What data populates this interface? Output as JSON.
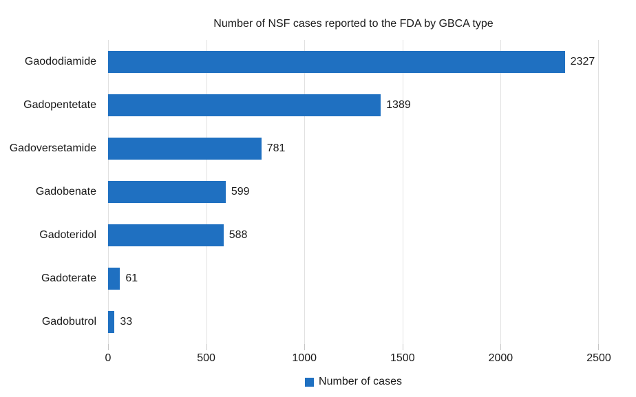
{
  "chart_data": {
    "type": "bar",
    "orientation": "horizontal",
    "title": "Number of NSF cases reported to the FDA by GBCA type",
    "categories": [
      "Gaododiamide",
      "Gadopentetate",
      "Gadoversetamide",
      "Gadobenate",
      "Gadoteridol",
      "Gadoterate",
      "Gadobutrol"
    ],
    "values": [
      2327,
      1389,
      781,
      599,
      588,
      61,
      33
    ],
    "series_name": "Number of cases",
    "xlabel": "",
    "ylabel": "",
    "xlim": [
      0,
      2500
    ],
    "x_ticks": [
      0,
      500,
      1000,
      1500,
      2000,
      2500
    ],
    "grid": "vertical-only",
    "legend_position": "bottom-center",
    "data_labels": "outside-end",
    "colors": {
      "bar": "#1f70c1",
      "gridline": "#e1e1e1",
      "tick": "#c6c6c6",
      "text": "#1a1a1a",
      "background": "#ffffff"
    }
  },
  "legend": {
    "label": "Number of cases"
  }
}
